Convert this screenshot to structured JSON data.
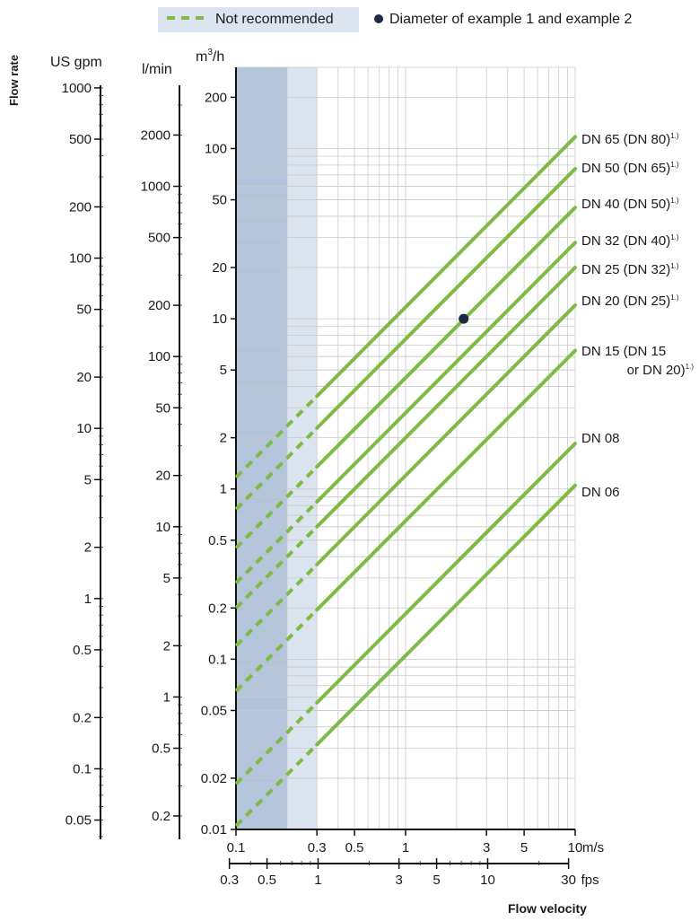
{
  "legend": {
    "dashed_label": "Not recommended",
    "dot_label": "Diameter of example 1 and example 2",
    "dashed_color": "#7dbb45",
    "dot_color": "#1c2a44"
  },
  "colors": {
    "line": "#7dbb45",
    "band_dark": "#b4c4da",
    "band_light": "#dce4ef",
    "grid": "#c8c8c8",
    "point": "#1c2a44"
  },
  "chart_data": {
    "type": "line",
    "xscale": "log",
    "yscale": "log",
    "xlim": [
      0.1,
      10
    ],
    "ylim": [
      0.01,
      300
    ],
    "grid": true,
    "ylabel": "Flow rate",
    "xlabel": "Flow velocity",
    "y_unit": "m3/h",
    "x_unit": "m/s",
    "secondary_axes": [
      {
        "unit": "US gpm",
        "ticks": [
          "1000",
          "500",
          "200",
          "100",
          "50",
          "20",
          "10",
          "5",
          "2",
          "1",
          "0.5",
          "0.2",
          "0.1",
          "0.05"
        ],
        "tick_values": [
          1000,
          500,
          200,
          100,
          50,
          20,
          10,
          5,
          2,
          1,
          0.5,
          0.2,
          0.1,
          0.05
        ]
      },
      {
        "unit": "l/min",
        "ticks": [
          "2000",
          "1000",
          "500",
          "200",
          "100",
          "50",
          "20",
          "10",
          "5",
          "2",
          "1",
          "0.5",
          "0.2"
        ],
        "tick_values": [
          2000,
          1000,
          500,
          200,
          100,
          50,
          20,
          10,
          5,
          2,
          1,
          0.5,
          0.2
        ]
      }
    ],
    "y_ticks": [
      "200",
      "100",
      "50",
      "20",
      "10",
      "5",
      "2",
      "1",
      "0.5",
      "0.2",
      "0.1",
      "0.05",
      "0.02",
      "0.01"
    ],
    "y_tick_values": [
      200,
      100,
      50,
      20,
      10,
      5,
      2,
      1,
      0.5,
      0.2,
      0.1,
      0.05,
      0.02,
      0.01
    ],
    "x_ticks": [
      "0.1",
      "0.3",
      "0.5",
      "1",
      "3",
      "5",
      "10"
    ],
    "x_tick_values": [
      0.1,
      0.3,
      0.5,
      1,
      3,
      5,
      10
    ],
    "x2_unit": "fps",
    "x2_ticks": [
      "0.3",
      "0.5",
      "1",
      "3",
      "5",
      "10",
      "30"
    ],
    "x2_tick_values": [
      0.3,
      0.5,
      1,
      3,
      5,
      10,
      30
    ],
    "not_recommended_bands": [
      {
        "from": 0.1,
        "to": 0.2,
        "shade": "dark"
      },
      {
        "from": 0.2,
        "to": 0.3,
        "shade": "light"
      }
    ],
    "dashed_until": 0.3,
    "series": [
      {
        "name": "DN 65 (DN 80)",
        "sup": "1.)",
        "x": [
          0.1,
          10
        ],
        "y": [
          1.17,
          117
        ]
      },
      {
        "name": "DN 50 (DN 65)",
        "sup": "1.)",
        "x": [
          0.1,
          10
        ],
        "y": [
          0.76,
          76
        ]
      },
      {
        "name": "DN 40 (DN 50)",
        "sup": "1.)",
        "x": [
          0.1,
          10
        ],
        "y": [
          0.45,
          45
        ]
      },
      {
        "name": "DN 32 (DN 40)",
        "sup": "1.)",
        "x": [
          0.1,
          10
        ],
        "y": [
          0.28,
          28
        ]
      },
      {
        "name": "DN 25 (DN 32)",
        "sup": "1.)",
        "x": [
          0.1,
          10
        ],
        "y": [
          0.2,
          20
        ]
      },
      {
        "name": "DN 20 (DN 25)",
        "sup": "1.)",
        "x": [
          0.1,
          10
        ],
        "y": [
          0.12,
          12
        ]
      },
      {
        "name": "DN 15 (DN 15",
        "name2": "or DN 20)",
        "sup": "1.)",
        "x": [
          0.1,
          10
        ],
        "y": [
          0.065,
          6.5
        ]
      },
      {
        "name": "DN 08",
        "sup": "",
        "x": [
          0.1,
          10
        ],
        "y": [
          0.0185,
          1.85
        ]
      },
      {
        "name": "DN 06",
        "sup": "",
        "x": [
          0.1,
          10
        ],
        "y": [
          0.0105,
          1.05
        ]
      }
    ],
    "points": [
      {
        "x": 2.2,
        "y": 10
      }
    ]
  }
}
